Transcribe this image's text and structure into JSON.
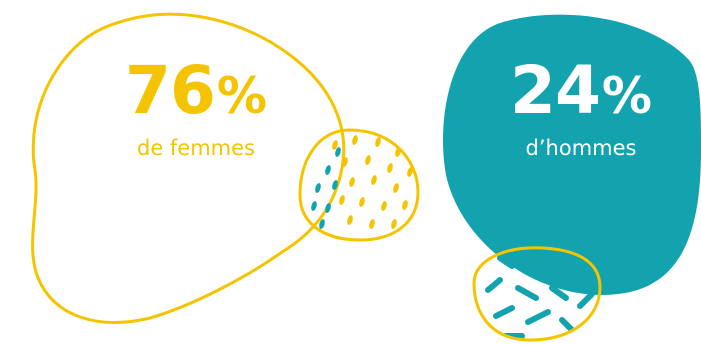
{
  "women": {
    "value": "76",
    "unit": "%",
    "label": "de femmes"
  },
  "men": {
    "value": "24",
    "unit": "%",
    "label": "d’hommes"
  },
  "colors": {
    "yellow": "#f5c400",
    "teal": "#12a3ae",
    "white": "#ffffff"
  },
  "icons": [
    "yellow-outline-blob",
    "teal-filled-blob",
    "dotted-yellow-blob",
    "dashed-teal-blob"
  ]
}
